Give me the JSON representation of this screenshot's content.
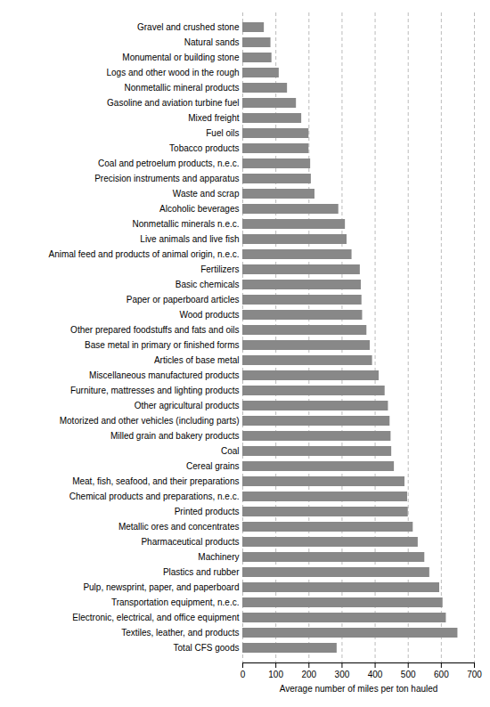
{
  "chart_data": {
    "type": "bar",
    "orientation": "horizontal",
    "categories": [
      "Gravel and crushed stone",
      "Natural sands",
      "Monumental or building stone",
      "Logs and other wood in the rough",
      "Nonmetallic mineral products",
      "Gasoline and aviation turbine fuel",
      "Mixed freight",
      "Fuel oils",
      "Tobacco products",
      "Coal and petroelum products, n.e.c.",
      "Precision instruments and apparatus",
      "Waste and scrap",
      "Alcoholic beverages",
      "Nonmetallic minerals n.e.c.",
      "Live animals and live fish",
      "Animal feed and products of animal origin, n.e.c.",
      "Fertilizers",
      "Basic chemicals",
      "Paper or paperboard articles",
      "Wood products",
      "Other prepared foodstuffs and fats and oils",
      "Base metal in primary or finished forms",
      "Articles of base metal",
      "Miscellaneous manufactured products",
      "Furniture, mattresses and lighting products",
      "Other agricultural products",
      "Motorized and other vehicles (including parts)",
      "Milled grain and bakery products",
      "Coal",
      "Cereal grains",
      "Meat, fish, seafood, and their preparations",
      "Chemical products and preparations, n.e.c.",
      "Printed products",
      "Metallic ores and concentrates",
      "Pharmaceutical products",
      "Machinery",
      "Plastics and rubber",
      "Pulp, newsprint, paper, and paperboard",
      "Transportation equipment, n.e.c.",
      "Electronic, electrical, and office equipment",
      "Textiles, leather, and products",
      "Total CFS goods"
    ],
    "values": [
      65,
      85,
      88,
      110,
      135,
      162,
      178,
      200,
      200,
      205,
      207,
      218,
      290,
      310,
      315,
      330,
      355,
      358,
      360,
      362,
      375,
      385,
      392,
      412,
      430,
      440,
      445,
      448,
      450,
      458,
      490,
      498,
      500,
      515,
      530,
      550,
      565,
      595,
      605,
      615,
      650,
      285
    ],
    "color": "#888888",
    "xlabel": "Average number of miles per ton hauled",
    "xlim": [
      0,
      700
    ],
    "xticks": [
      0,
      100,
      200,
      300,
      400,
      500,
      600,
      700
    ],
    "grid": true
  }
}
